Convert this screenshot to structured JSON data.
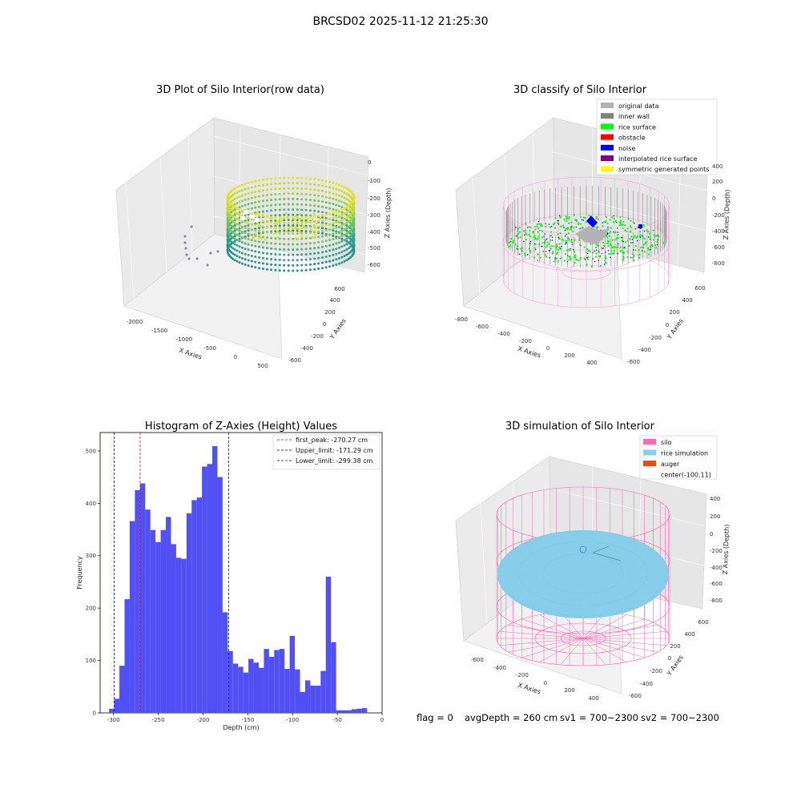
{
  "suptitle": "BRCSD02 2025-11-12 21:25:30",
  "status": {
    "flag": "flag = 0",
    "avg_depth": "avgDepth = 260 cm",
    "sv1": "sv1 = 700~2300",
    "sv2": "sv2 = 700~2300"
  },
  "chart_data": [
    {
      "type": "scatter",
      "title": "3D Plot of Silo Interior(row data)",
      "xlabel": "X Axies",
      "ylabel": "Y Axies",
      "zlabel": "Z Axies (Depth)",
      "x_ticks": [
        "-2000",
        "-1500",
        "-1000",
        "-500",
        "0",
        "500"
      ],
      "y_ticks": [
        "-600",
        "-400",
        "-200",
        "0",
        "200",
        "400",
        "600"
      ],
      "z_ticks": [
        "0",
        "-100",
        "-200",
        "-300",
        "-400",
        "-500",
        "-600"
      ],
      "xlim": [
        -2200,
        600
      ],
      "ylim": [
        -650,
        650
      ],
      "zlim": [
        -650,
        0
      ],
      "colormap": "viridis"
    },
    {
      "type": "scatter",
      "title": "3D classify of Silo Interior",
      "xlabel": "X Axies",
      "ylabel": "Y Axies",
      "zlabel": "Z Axies (Depth)",
      "x_ticks": [
        "-800",
        "-600",
        "-400",
        "-200",
        "0",
        "200",
        "400"
      ],
      "y_ticks": [
        "-600",
        "-400",
        "-200",
        "0",
        "200",
        "400",
        "600"
      ],
      "z_ticks": [
        "400",
        "200",
        "0",
        "-200",
        "-400",
        "-600",
        "-800"
      ],
      "legend_position": "upper-right",
      "legend": [
        {
          "name": "original data",
          "color": "#b3b3b3"
        },
        {
          "name": "inner wall",
          "color": "#808080"
        },
        {
          "name": "rice surface",
          "color": "#00ff00"
        },
        {
          "name": "obstacle",
          "color": "#ff0000"
        },
        {
          "name": "noise",
          "color": "#0000ff"
        },
        {
          "name": "interpolated rice surface",
          "color": "#800080"
        },
        {
          "name": "symmetric generated points",
          "color": "#ffff00"
        }
      ]
    },
    {
      "type": "bar",
      "title": "Histogram of Z-Axies (Height) Values",
      "xlabel": "Depth (cm)",
      "ylabel": "Frequency",
      "bar_color": "#5050f5",
      "xlim": [
        -315,
        0
      ],
      "ylim": [
        0,
        535
      ],
      "x_ticks": [
        -300,
        -250,
        -200,
        -150,
        -100,
        -50,
        0
      ],
      "y_ticks": [
        0,
        100,
        200,
        300,
        400,
        500
      ],
      "bin_start": -305,
      "bin_width": 5.765,
      "values": [
        8,
        27,
        90,
        217,
        366,
        425,
        438,
        388,
        349,
        326,
        349,
        374,
        322,
        296,
        294,
        381,
        406,
        411,
        470,
        475,
        509,
        450,
        192,
        118,
        94,
        88,
        77,
        103,
        96,
        86,
        122,
        107,
        120,
        122,
        84,
        147,
        83,
        40,
        62,
        52,
        52,
        80,
        260,
        135,
        5,
        5,
        5,
        7,
        8,
        9
      ],
      "lines": [
        {
          "name": "first_peak: -270.27 cm",
          "x": -270.27,
          "color": "#ff0000"
        },
        {
          "name": "Upper_limit: -171.29 cm",
          "x": -171.29,
          "color": "#0000ff"
        },
        {
          "name": "Lower_limit: -299.38 cm",
          "x": -299.38,
          "color": "#0000ff"
        }
      ],
      "legend_position": "upper-right"
    },
    {
      "type": "scatter",
      "title": "3D simulation of Silo Interior",
      "xlabel": "X Axies",
      "ylabel": "Y Axies",
      "zlabel": "Z Axies (Depth)",
      "x_ticks": [
        "-600",
        "-400",
        "-200",
        "0",
        "200",
        "400"
      ],
      "y_ticks": [
        "-600",
        "-400",
        "-200",
        "0",
        "200",
        "400",
        "600"
      ],
      "z_ticks": [
        "400",
        "200",
        "0",
        "-200",
        "-400",
        "-600",
        "-800"
      ],
      "legend_position": "upper-right",
      "legend": [
        {
          "name": "silo",
          "color": "#ff69b4"
        },
        {
          "name": "rice simulation",
          "color": "#87ceeb"
        },
        {
          "name": "auger",
          "color": "#ff4500"
        },
        {
          "name": "center(-100,11)",
          "color": "none"
        }
      ]
    }
  ]
}
